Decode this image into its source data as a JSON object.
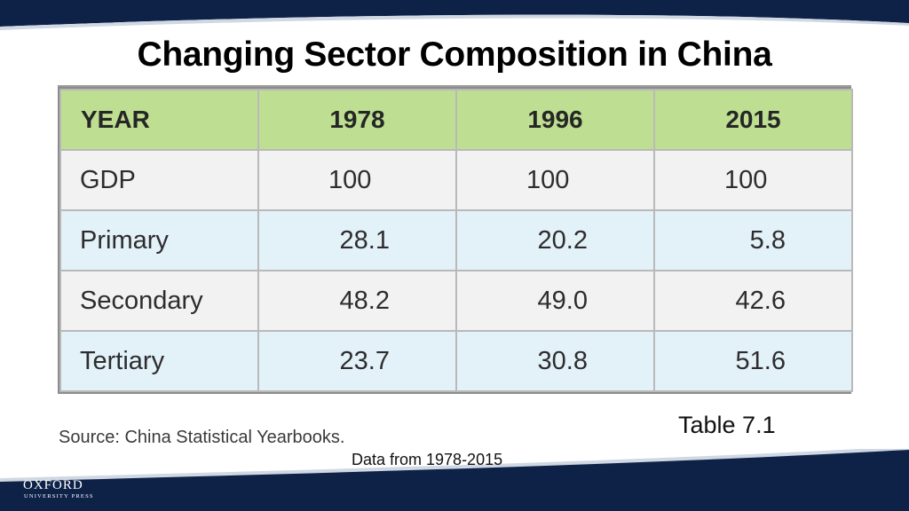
{
  "slide": {
    "title": "Changing Sector Composition in China",
    "caption": "Table 7.1",
    "source": "Source: China Statistical Yearbooks.",
    "data_range": "Data from 1978-2015"
  },
  "logo": {
    "name": "OXFORD",
    "subtitle": "UNIVERSITY PRESS"
  },
  "colors": {
    "navy": "#0e2147",
    "header_green": "#bedf91",
    "row_grey": "#f2f2f2",
    "row_blue": "#e3f1f9"
  },
  "table": {
    "headers": [
      "YEAR",
      "1978",
      "1996",
      "2015"
    ],
    "rows": [
      {
        "label": "GDP",
        "values": [
          "100",
          "100",
          "100"
        ]
      },
      {
        "label": "Primary",
        "values": [
          "28.1",
          "20.2",
          "5.8"
        ]
      },
      {
        "label": "Secondary",
        "values": [
          "48.2",
          "49.0",
          "42.6"
        ]
      },
      {
        "label": "Tertiary",
        "values": [
          "23.7",
          "30.8",
          "51.6"
        ]
      }
    ]
  }
}
